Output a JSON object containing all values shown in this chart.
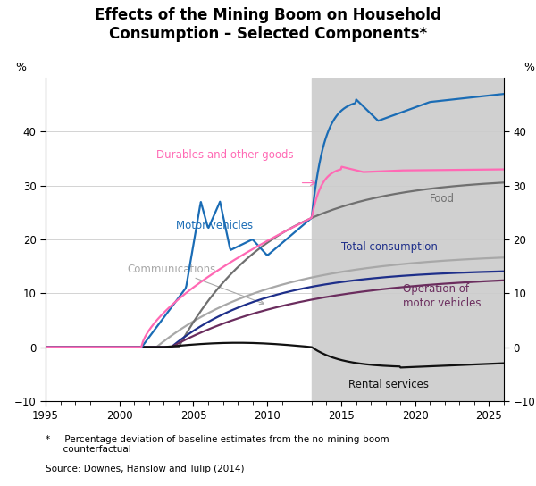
{
  "title": "Effects of the Mining Boom on Household\nConsumption – Selected Components*",
  "ylabel_left": "%",
  "ylabel_right": "%",
  "ylim": [
    -10,
    50
  ],
  "xlim": [
    1995,
    2026
  ],
  "yticks": [
    -10,
    0,
    10,
    20,
    30,
    40
  ],
  "xticks": [
    1995,
    2000,
    2005,
    2010,
    2015,
    2020,
    2025
  ],
  "shaded_region": [
    2013,
    2026
  ],
  "shaded_color": "#d0d0d0",
  "footnote_star": "*     Percentage deviation of baseline estimates from the no-mining-boom\n      counterfactual",
  "footnote_source": "Source: Downes, Hanslow and Tulip (2014)",
  "series": {
    "motor_vehicles": {
      "color": "#1a6cb5",
      "label": "Motor vehicles"
    },
    "durables": {
      "color": "#ff69b4",
      "label": "Durables and other goods"
    },
    "food": {
      "color": "#707070",
      "label": "Food"
    },
    "communications": {
      "color": "#a8a8a8",
      "label": "Communications"
    },
    "total": {
      "color": "#1e2f8a",
      "label": "Total consumption"
    },
    "operation": {
      "color": "#6b2d5e",
      "label": "Operation of\nmotor vehicles"
    },
    "rental": {
      "color": "#111111",
      "label": "Rental services"
    }
  }
}
